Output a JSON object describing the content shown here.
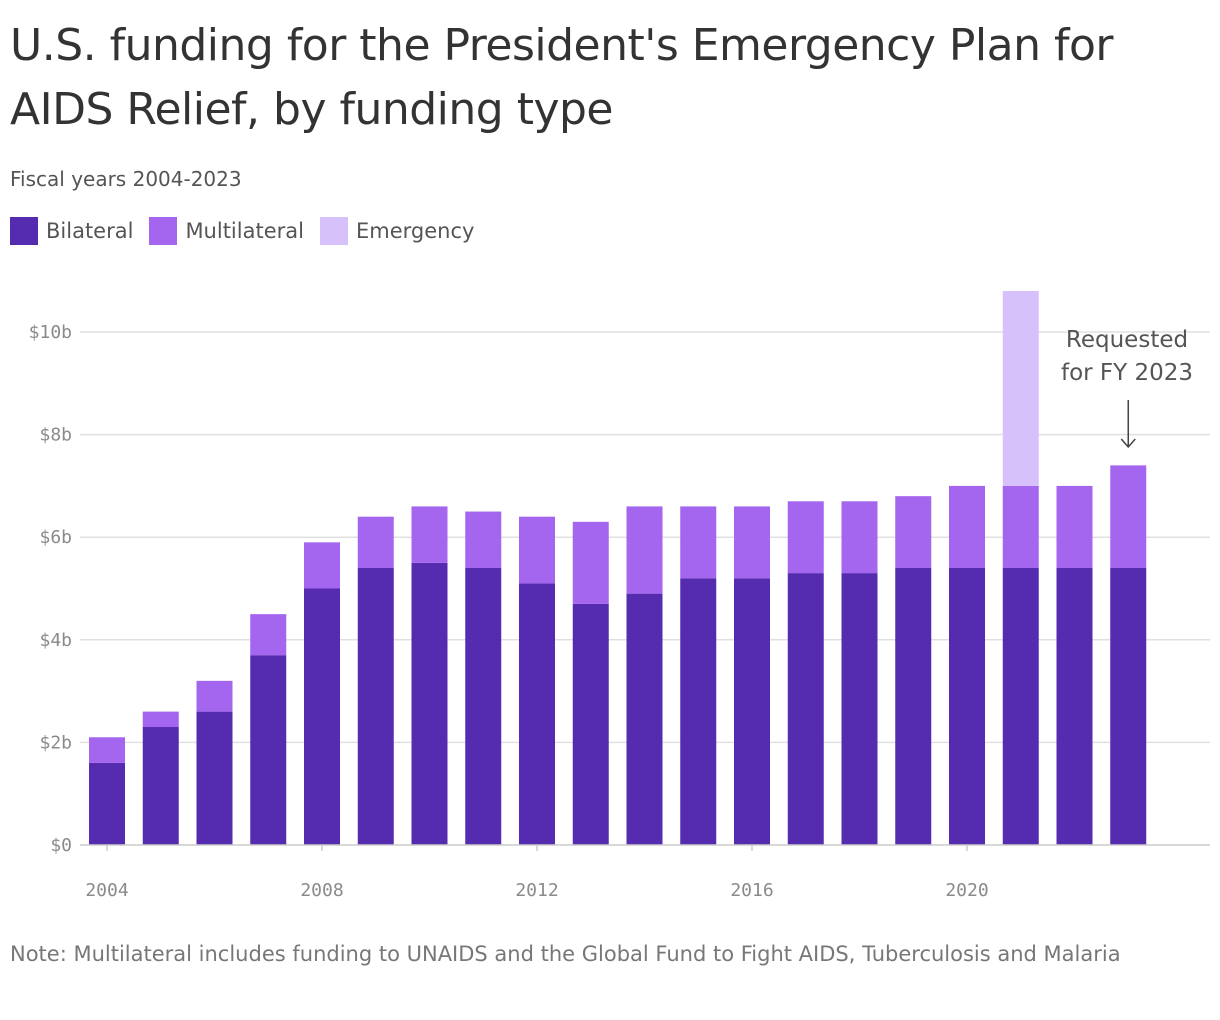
{
  "title": "U.S. funding for the President's Emergency Plan for AIDS Relief, by funding type",
  "subtitle": "Fiscal years 2004-2023",
  "note": "Note: Multilateral includes funding to UNAIDS and the Global Fund to Fight AIDS, Tuberculosis and Malaria",
  "colors": {
    "Bilateral": "#552baf",
    "Multilateral": "#a466ee",
    "Emergency": "#d7c1fb",
    "grid": "#e0e0e0",
    "axis": "#cccccc"
  },
  "chart_data": {
    "type": "bar",
    "stacked": true,
    "title": "U.S. funding for the President's Emergency Plan for AIDS Relief, by funding type",
    "subtitle": "Fiscal years 2004-2023",
    "xlabel": "",
    "ylabel": "",
    "categories": [
      2004,
      2005,
      2006,
      2007,
      2008,
      2009,
      2010,
      2011,
      2012,
      2013,
      2014,
      2015,
      2016,
      2017,
      2018,
      2019,
      2020,
      2021,
      2022,
      2023
    ],
    "series": [
      {
        "name": "Bilateral",
        "values": [
          1.6,
          2.3,
          2.6,
          3.7,
          5.0,
          5.4,
          5.5,
          5.4,
          5.1,
          4.7,
          4.9,
          5.2,
          5.2,
          5.3,
          5.3,
          5.4,
          5.4,
          5.4,
          5.4,
          5.4
        ]
      },
      {
        "name": "Multilateral",
        "values": [
          0.5,
          0.3,
          0.6,
          0.8,
          0.9,
          1.0,
          1.1,
          1.1,
          1.3,
          1.6,
          1.7,
          1.4,
          1.4,
          1.4,
          1.4,
          1.4,
          1.6,
          1.6,
          1.6,
          2.0
        ]
      },
      {
        "name": "Emergency",
        "values": [
          0,
          0,
          0,
          0,
          0,
          0,
          0,
          0,
          0,
          0,
          0,
          0,
          0,
          0,
          0,
          0,
          0,
          3.8,
          0,
          0
        ]
      }
    ],
    "ylim": [
      0,
      10.8
    ],
    "yticks": [
      0,
      2,
      4,
      6,
      8,
      10
    ],
    "ytick_labels": [
      "$0",
      "$2b",
      "$4b",
      "$6b",
      "$8b",
      "$10b"
    ],
    "xticks": [
      2004,
      2008,
      2012,
      2016,
      2020
    ],
    "xtick_labels": [
      "2004",
      "2008",
      "2012",
      "2016",
      "2020"
    ],
    "legend": "top-left",
    "grid": true,
    "annotation": {
      "lines": [
        "Requested",
        "for FY 2023"
      ],
      "category": 2023
    }
  }
}
